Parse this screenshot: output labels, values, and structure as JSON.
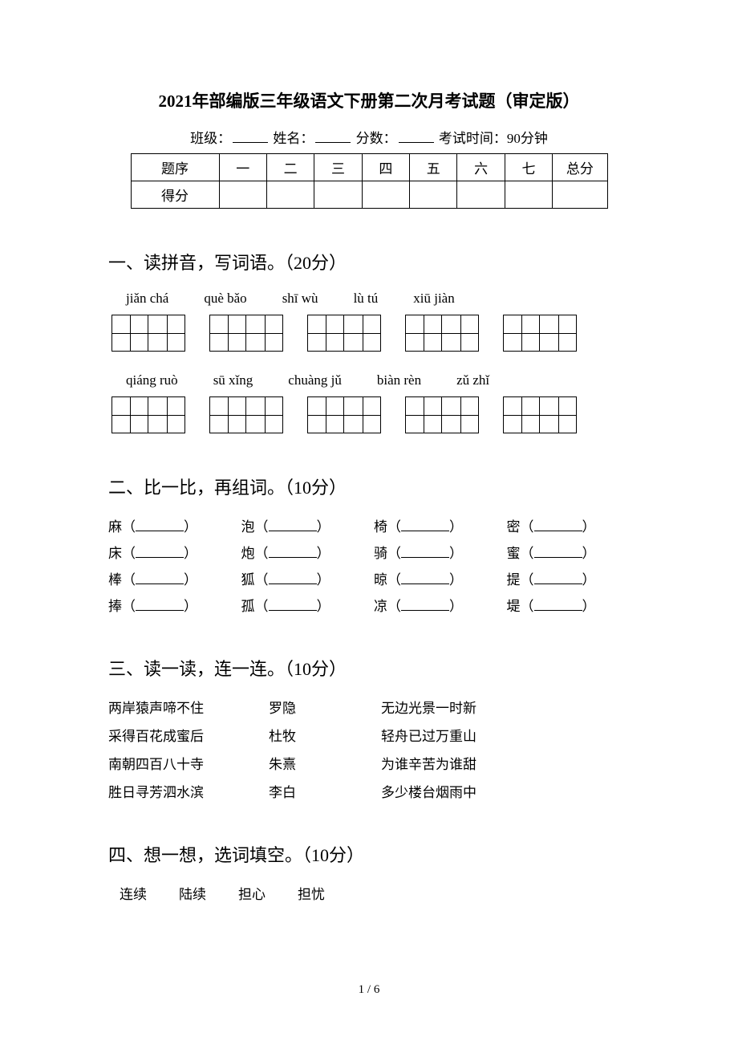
{
  "title": "2021年部编版三年级语文下册第二次月考试题（审定版）",
  "meta": {
    "class_label": "班级：",
    "name_label": "姓名：",
    "score_label": "分数：",
    "time_label": "考试时间：",
    "time_value": "90分钟"
  },
  "score_table": {
    "row1_label": "题序",
    "cols": [
      "一",
      "二",
      "三",
      "四",
      "五",
      "六",
      "七"
    ],
    "total_label": "总分",
    "row2_label": "得分"
  },
  "section1": {
    "heading": "一、读拼音，写词语。（20分）",
    "row1": [
      "jiǎn chá",
      "què bǎo",
      "shī wù",
      "lù tú",
      "xiū jiàn"
    ],
    "row2": [
      "qiáng ruò",
      "sū xǐng",
      "chuàng jǔ",
      "biàn rèn",
      "zǔ zhǐ"
    ]
  },
  "section2": {
    "heading": "二、比一比，再组词。（10分）",
    "rows": [
      [
        "麻",
        "泡",
        "椅",
        "密"
      ],
      [
        "床",
        "炮",
        "骑",
        "蜜"
      ],
      [
        "棒",
        "狐",
        "晾",
        "提"
      ],
      [
        "捧",
        "孤",
        "凉",
        "堤"
      ]
    ]
  },
  "section3": {
    "heading": "三、读一读，连一连。（10分）",
    "left": [
      "两岸猿声啼不住",
      "采得百花成蜜后",
      "南朝四百八十寺",
      "胜日寻芳泗水滨"
    ],
    "mid": [
      "罗隐",
      "杜牧",
      "朱熹",
      "李白"
    ],
    "right": [
      "无边光景一时新",
      "轻舟已过万重山",
      "为谁辛苦为谁甜",
      "多少楼台烟雨中"
    ]
  },
  "section4": {
    "heading": "四、想一想，选词填空。（10分）",
    "bank": [
      "连续",
      "陆续",
      "担心",
      "担忧"
    ]
  },
  "footer": "1 / 6"
}
